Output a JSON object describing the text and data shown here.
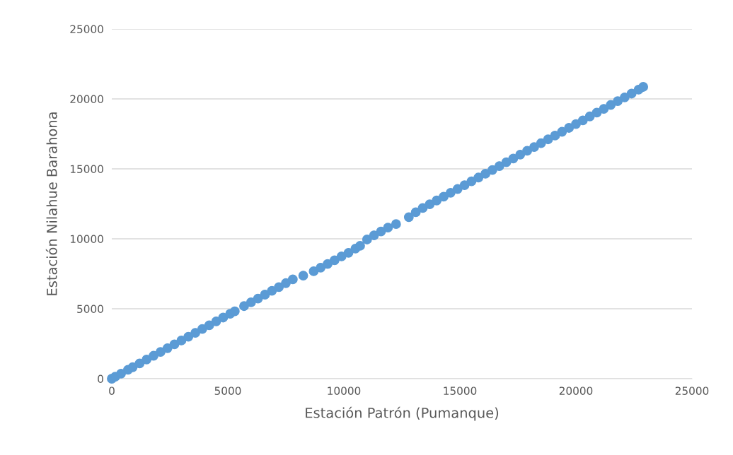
{
  "chart_data": {
    "type": "scatter",
    "xlabel": "Estación Patrón (Pumanque)",
    "ylabel": "Estación Nilahue Barahona",
    "x": [
      0,
      150,
      400,
      700,
      900,
      1200,
      1500,
      1800,
      2100,
      2400,
      2700,
      3000,
      3300,
      3600,
      3900,
      4200,
      4500,
      4800,
      5100,
      5300,
      5700,
      6000,
      6300,
      6600,
      6900,
      7200,
      7500,
      7800,
      8250,
      8700,
      9000,
      9300,
      9600,
      9900,
      10200,
      10500,
      10700,
      11000,
      11300,
      11600,
      11900,
      12250,
      12800,
      13100,
      13400,
      13700,
      14000,
      14300,
      14600,
      14900,
      15200,
      15500,
      15800,
      16100,
      16400,
      16700,
      17000,
      17300,
      17600,
      17900,
      18200,
      18500,
      18800,
      19100,
      19400,
      19700,
      20000,
      20300,
      20600,
      20900,
      21200,
      21500,
      21800,
      22100,
      22400,
      22700,
      22900
    ],
    "series": [
      {
        "color": "#5b9bd5",
        "values": [
          0,
          140,
          360,
          640,
          820,
          1090,
          1370,
          1640,
          1910,
          2180,
          2460,
          2730,
          3000,
          3280,
          3550,
          3820,
          4100,
          4370,
          4640,
          4820,
          5190,
          5460,
          5730,
          6010,
          6280,
          6550,
          6830,
          7100,
          7370,
          7680,
          7940,
          8200,
          8470,
          8740,
          9000,
          9300,
          9500,
          9950,
          10250,
          10520,
          10800,
          11050,
          11550,
          11900,
          12200,
          12470,
          12740,
          13010,
          13290,
          13560,
          13830,
          14110,
          14380,
          14650,
          14920,
          15200,
          15470,
          15740,
          16020,
          16290,
          16560,
          16840,
          17110,
          17380,
          17650,
          17930,
          18200,
          18470,
          18750,
          19020,
          19290,
          19570,
          19840,
          20110,
          20380,
          20660,
          20860
        ]
      }
    ],
    "xlim": [
      0,
      25000
    ],
    "xticks": [
      0,
      5000,
      10000,
      15000,
      20000,
      25000
    ],
    "ylim": [
      0,
      25000
    ],
    "yticks": [
      0,
      5000,
      10000,
      15000,
      20000,
      25000
    ],
    "grid": "y",
    "marker": "circle",
    "legend": false
  }
}
